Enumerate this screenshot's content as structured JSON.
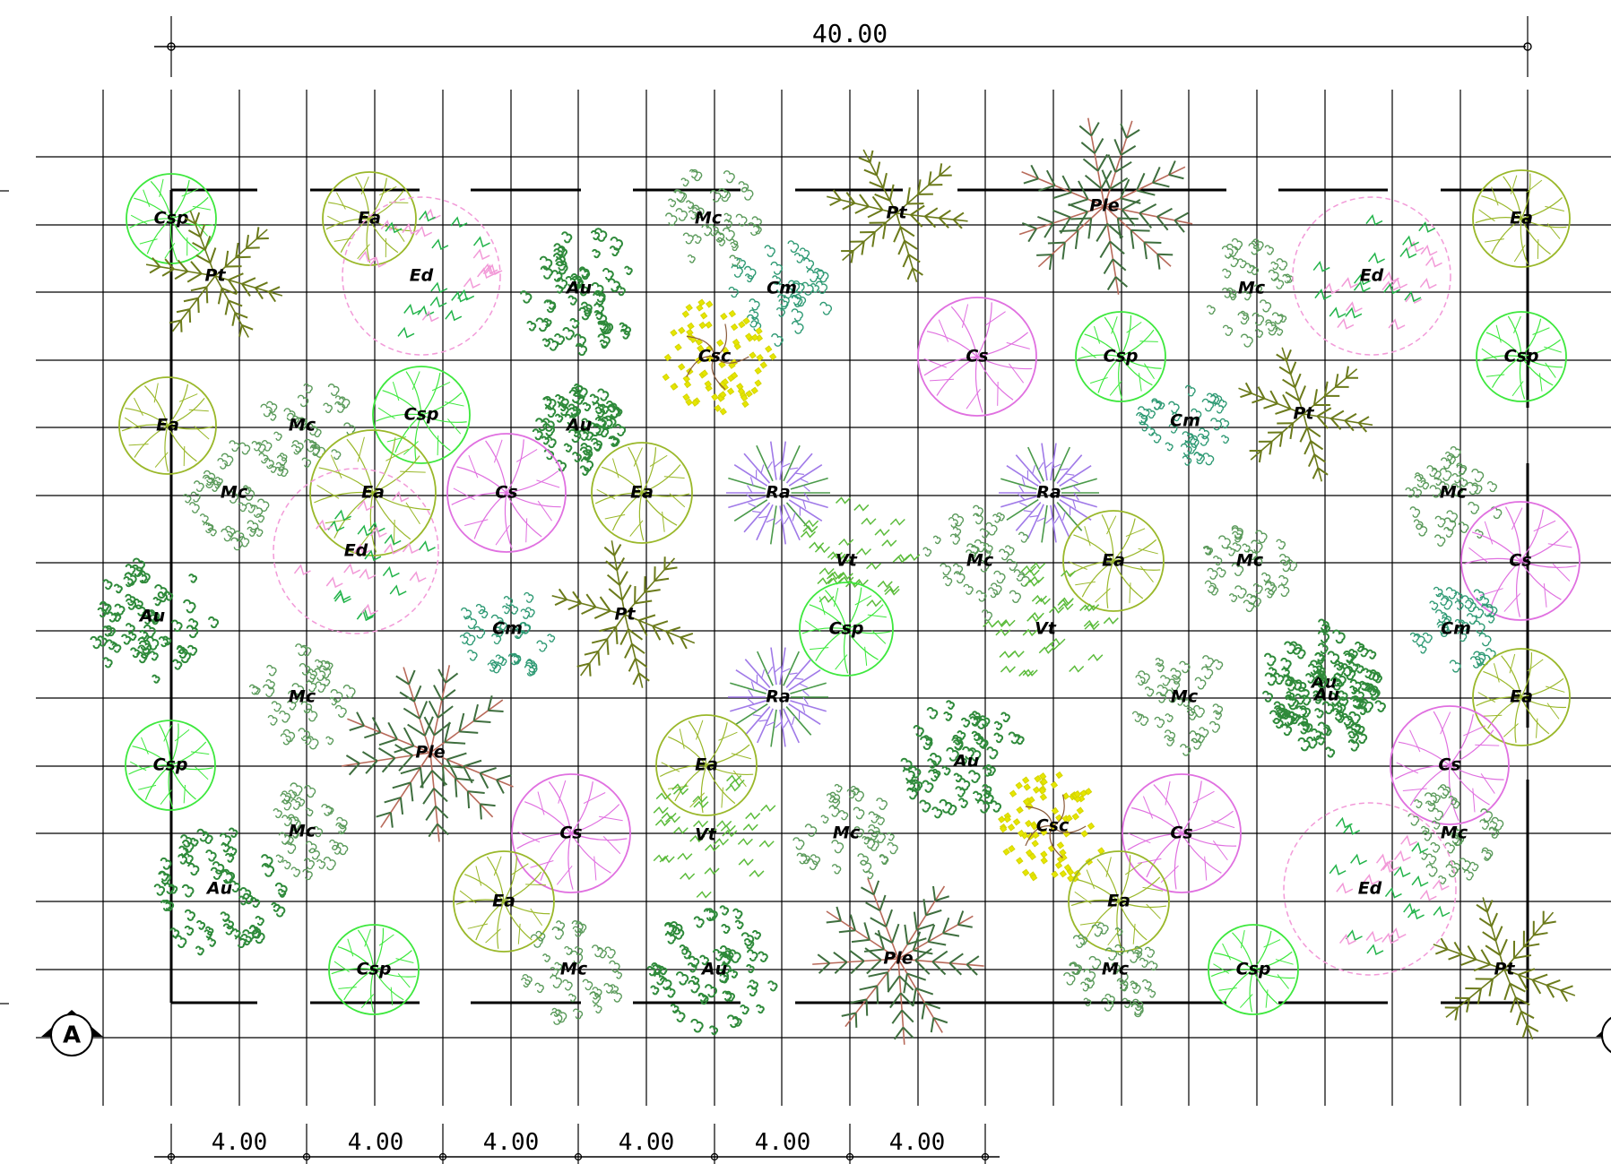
{
  "dimensions": {
    "overall": "40.00",
    "module": [
      "4.00",
      "4.00",
      "4.00",
      "4.00",
      "4.00",
      "4.00"
    ]
  },
  "grid_bubble": "A",
  "species_colors": {
    "Csp": "#3ee83e",
    "Ea": "#9ab82a",
    "Pt": "#6b7a1a",
    "Ed": "#f08ad0",
    "Au": "#2e8a3a",
    "Mc": "#5a9a5a",
    "Cm": "#2e9a74",
    "Csc": "#e0e000",
    "Cs": "#e070e0",
    "Ple": "#3e6e3e",
    "Ra": "#9a6ae8",
    "Vt": "#5cbc3c"
  },
  "trees": [
    {
      "label": "Csp"
    },
    {
      "label": "Pt"
    },
    {
      "label": "Ea"
    },
    {
      "label": "Ed"
    },
    {
      "label": "Au"
    },
    {
      "label": "Mc"
    },
    {
      "label": "Cm"
    },
    {
      "label": "Csc"
    },
    {
      "label": "Pt"
    },
    {
      "label": "Ple"
    },
    {
      "label": "Cs"
    },
    {
      "label": "Csp"
    },
    {
      "label": "Mc"
    },
    {
      "label": "Ed"
    },
    {
      "label": "Ea"
    },
    {
      "label": "Csp"
    },
    {
      "label": "Ea"
    },
    {
      "label": "Mc"
    },
    {
      "label": "Csp"
    },
    {
      "label": "Au"
    },
    {
      "label": "Ea"
    },
    {
      "label": "Cm"
    },
    {
      "label": "Pt"
    },
    {
      "label": "Mc"
    },
    {
      "label": "Cs"
    },
    {
      "label": "Ea"
    },
    {
      "label": "Ra"
    },
    {
      "label": "Ra"
    },
    {
      "label": "Mc"
    },
    {
      "label": "Ed"
    },
    {
      "label": "Vt"
    },
    {
      "label": "Mc"
    },
    {
      "label": "Ea"
    },
    {
      "label": "Au"
    },
    {
      "label": "Mc"
    },
    {
      "label": "Cs"
    },
    {
      "label": "Au"
    },
    {
      "label": "Cm"
    },
    {
      "label": "Pt"
    },
    {
      "label": "Csp"
    },
    {
      "label": "Vt"
    },
    {
      "label": "Cm"
    },
    {
      "label": "Mc"
    },
    {
      "label": "Ra"
    },
    {
      "label": "Mc"
    },
    {
      "label": "Au"
    },
    {
      "label": "Ea"
    },
    {
      "label": "Ple"
    },
    {
      "label": "Csp"
    },
    {
      "label": "Au"
    },
    {
      "label": "Ea"
    },
    {
      "label": "Cs"
    },
    {
      "label": "Mc"
    },
    {
      "label": "Cs"
    },
    {
      "label": "Csc"
    },
    {
      "label": "Cs"
    },
    {
      "label": "Mc"
    },
    {
      "label": "Au"
    },
    {
      "label": "Vt"
    },
    {
      "label": "Mc"
    },
    {
      "label": "Ea"
    },
    {
      "label": "Ed"
    },
    {
      "label": "Ea"
    },
    {
      "label": "Csp"
    },
    {
      "label": "Mc"
    },
    {
      "label": "Au"
    },
    {
      "label": "Ple"
    },
    {
      "label": "Mc"
    },
    {
      "label": "Csp"
    },
    {
      "label": "Pt"
    }
  ]
}
